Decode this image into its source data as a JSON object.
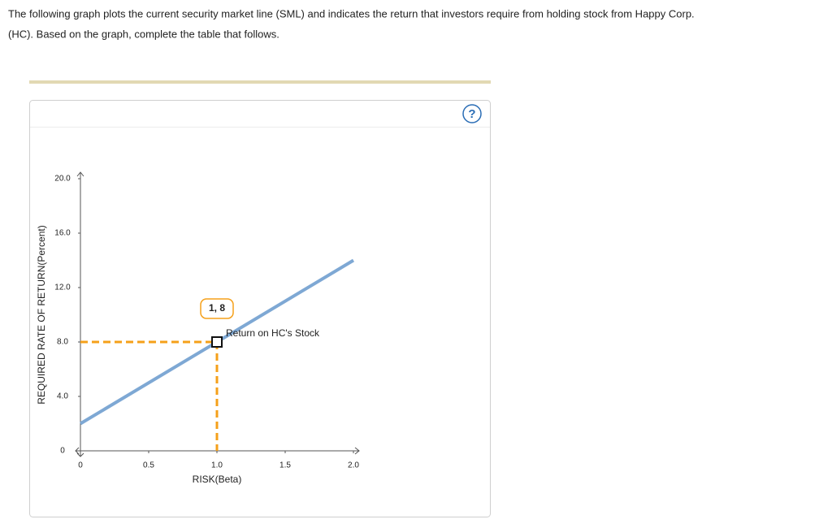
{
  "instructions": [
    "The following graph plots the current security market line (SML) and indicates the return that investors require from holding stock from Happy Corp.",
    "(HC). Based on the graph, complete the table that follows."
  ],
  "chart_data": {
    "type": "line",
    "x_label": "RISK(Beta)",
    "y_label": "REQUIRED RATE OF RETURN(Percent)",
    "xlim": [
      0,
      2
    ],
    "ylim": [
      0,
      20
    ],
    "xticks": [
      0,
      0.5,
      {
        "value": 1,
        "label": "1.0"
      },
      1.5,
      {
        "value": 2,
        "label": "2.0"
      }
    ],
    "yticks": [
      0,
      {
        "value": 4,
        "label": "4.0"
      },
      {
        "value": 8,
        "label": "8.0"
      },
      {
        "value": 12,
        "label": "12.0"
      },
      {
        "value": 16,
        "label": "16.0"
      },
      {
        "value": 20,
        "label": "20.0"
      }
    ],
    "series": [
      {
        "x": [
          0,
          2
        ],
        "values": [
          2,
          14
        ],
        "color": "#7ea8d4"
      }
    ],
    "point": {
      "x": [
        1
      ],
      "values": [
        8
      ],
      "value_labels": [
        "1, 8"
      ],
      "color": "#f5a01a",
      "annotation": "Return on HC's Stock"
    }
  }
}
